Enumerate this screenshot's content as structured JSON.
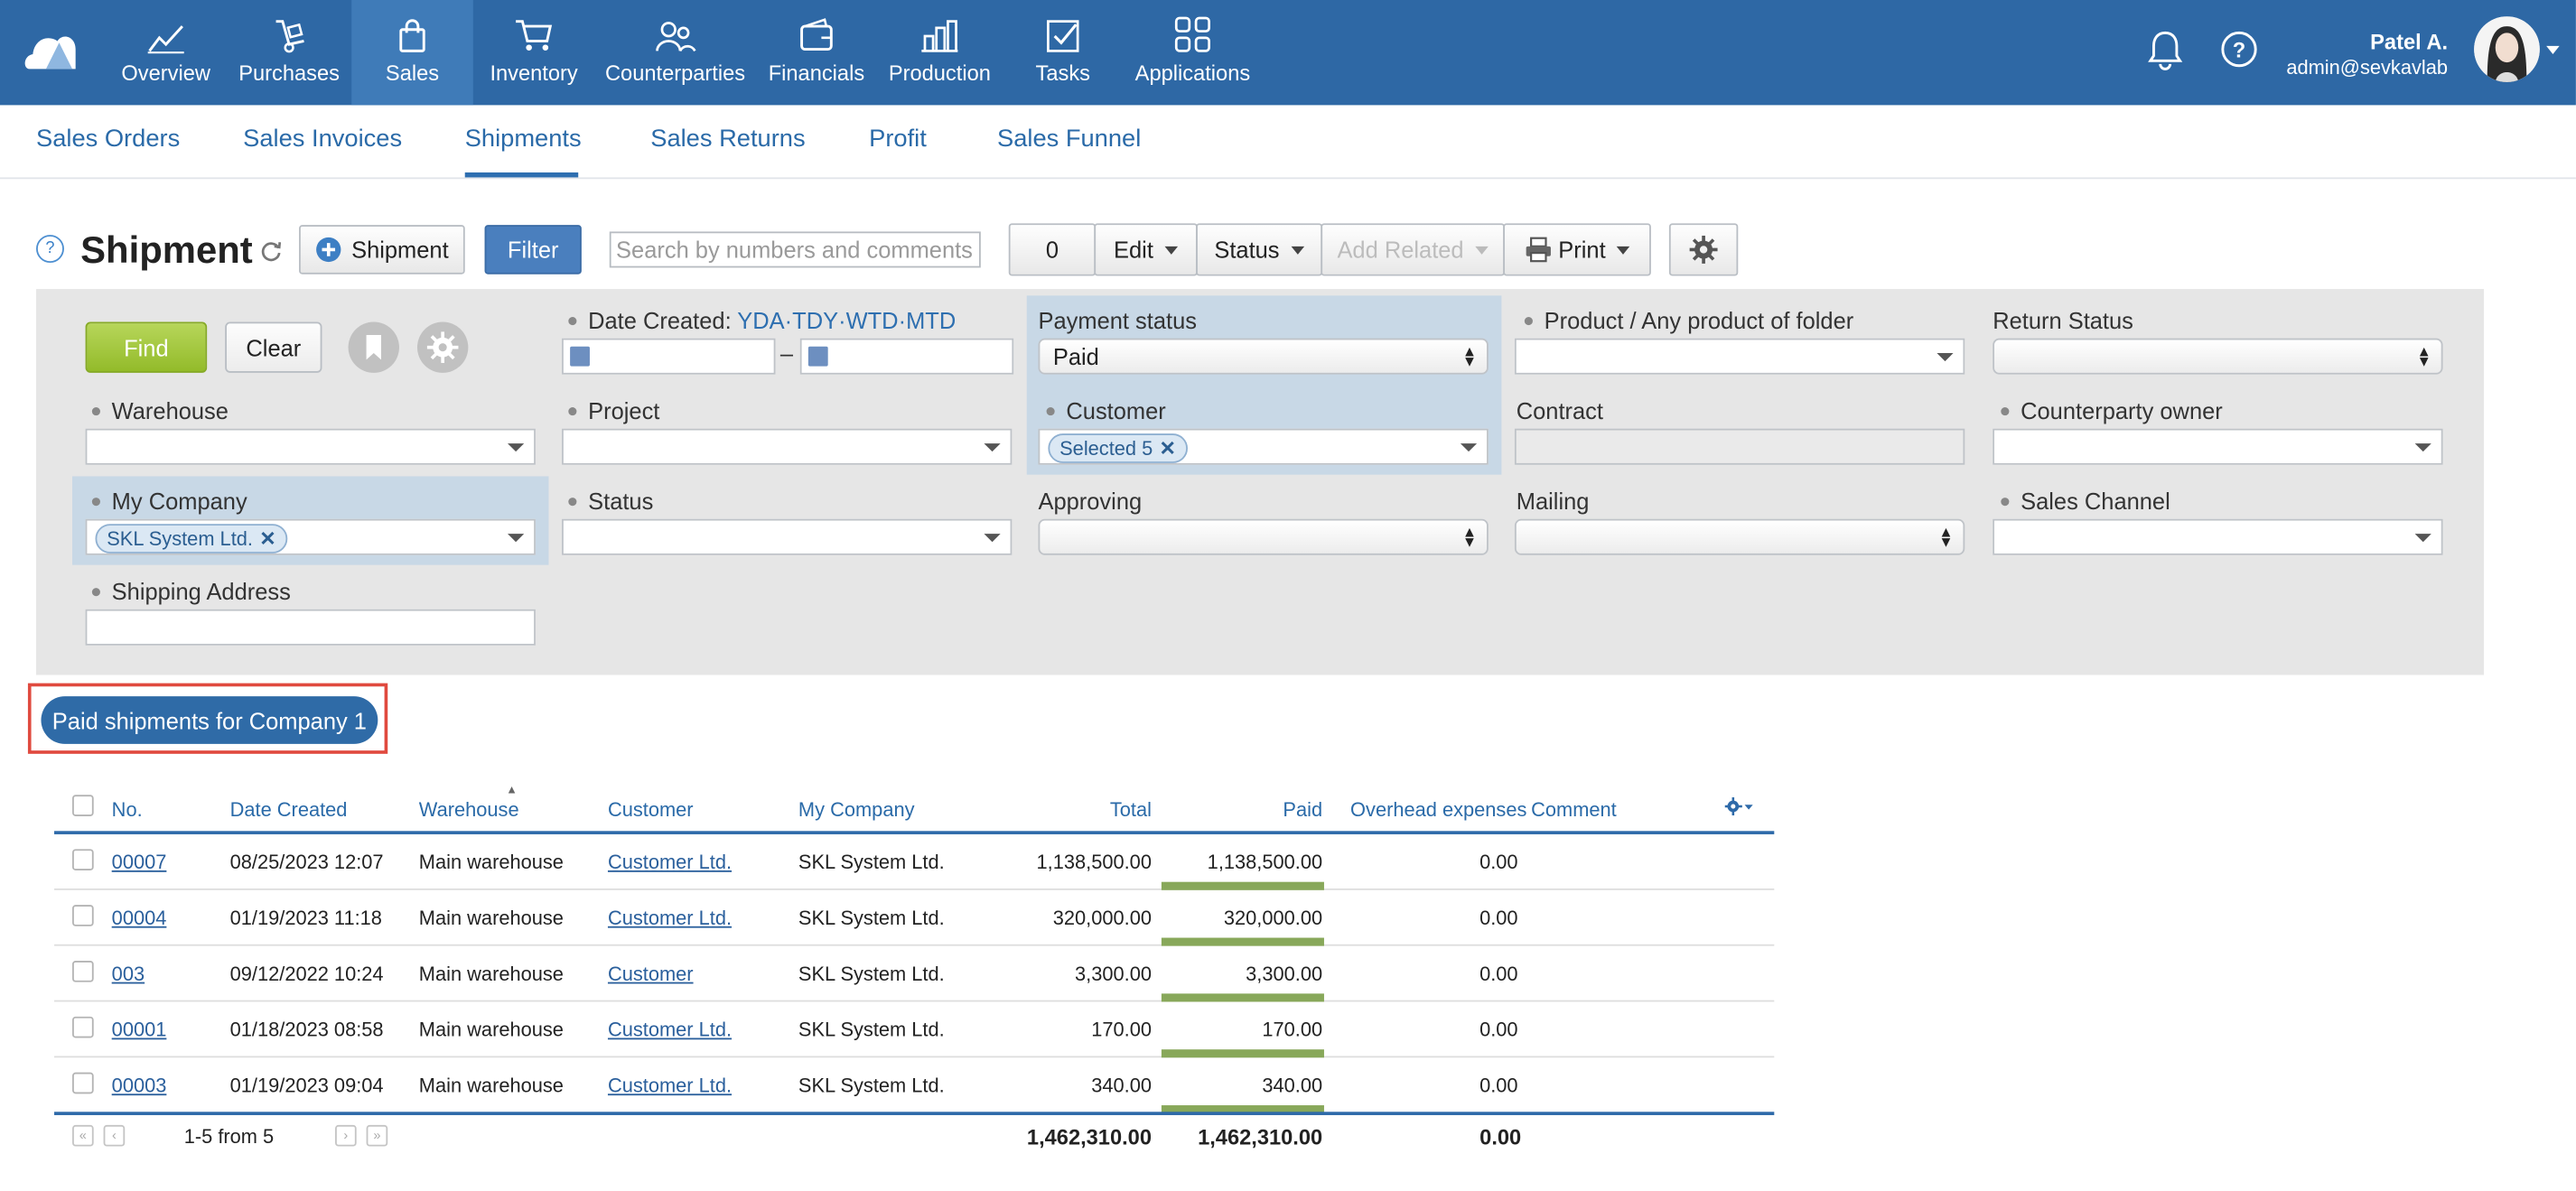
{
  "topnav": {
    "items": [
      {
        "label": "Overview",
        "icon": "chart-line-icon"
      },
      {
        "label": "Purchases",
        "icon": "hand-truck-icon"
      },
      {
        "label": "Sales",
        "icon": "shopping-bag-icon",
        "active": true
      },
      {
        "label": "Inventory",
        "icon": "cart-icon"
      },
      {
        "label": "Counterparties",
        "icon": "people-icon"
      },
      {
        "label": "Financials",
        "icon": "wallet-icon"
      },
      {
        "label": "Production",
        "icon": "factory-icon"
      },
      {
        "label": "Tasks",
        "icon": "checkbox-icon"
      },
      {
        "label": "Applications",
        "icon": "apps-grid-icon"
      }
    ],
    "user_name": "Patel A.",
    "user_email": "admin@sevkavlab"
  },
  "subnav": {
    "items": [
      "Sales Orders",
      "Sales Invoices",
      "Shipments",
      "Sales Returns",
      "Profit",
      "Sales Funnel"
    ],
    "active": "Shipments"
  },
  "toolbar": {
    "help": "?",
    "title": "Shipment",
    "add_label": "Shipment",
    "filter_label": "Filter",
    "search_placeholder": "Search by numbers and comments",
    "selected_count": "0",
    "edit_label": "Edit",
    "status_label": "Status",
    "add_related_label": "Add Related",
    "print_label": "Print"
  },
  "filters": {
    "find_label": "Find",
    "clear_label": "Clear",
    "date_created_label": "Date Created:",
    "date_links": [
      "YDA",
      "TDY",
      "WTD",
      "MTD"
    ],
    "date_separator": "–",
    "payment_status_label": "Payment status",
    "payment_status_value": "Paid",
    "product_label": "Product / Any product of folder",
    "return_status_label": "Return Status",
    "warehouse_label": "Warehouse",
    "project_label": "Project",
    "customer_label": "Customer",
    "customer_chip": "Selected 5",
    "contract_label": "Contract",
    "counterparty_owner_label": "Counterparty owner",
    "my_company_label": "My Company",
    "my_company_chip": "SKL System Ltd.",
    "status_label": "Status",
    "approving_label": "Approving",
    "mailing_label": "Mailing",
    "sales_channel_label": "Sales Channel",
    "shipping_address_label": "Shipping Address"
  },
  "saved_filter": "Paid shipments for Company 1",
  "table": {
    "headers": {
      "no": "No.",
      "date_created": "Date Created",
      "warehouse": "Warehouse",
      "customer": "Customer",
      "my_company": "My Company",
      "total": "Total",
      "paid": "Paid",
      "overhead": "Overhead expenses",
      "comment": "Comment"
    },
    "rows": [
      {
        "no": "00007",
        "date": "08/25/2023 12:07",
        "warehouse": "Main warehouse",
        "customer": "Customer Ltd.",
        "company": "SKL System Ltd.",
        "total": "1,138,500.00",
        "paid": "1,138,500.00",
        "overhead": "0.00",
        "comment": ""
      },
      {
        "no": "00004",
        "date": "01/19/2023 11:18",
        "warehouse": "Main warehouse",
        "customer": "Customer Ltd.",
        "company": "SKL System Ltd.",
        "total": "320,000.00",
        "paid": "320,000.00",
        "overhead": "0.00",
        "comment": ""
      },
      {
        "no": "003",
        "date": "09/12/2022 10:24",
        "warehouse": "Main warehouse",
        "customer": "Customer",
        "company": "SKL System Ltd.",
        "total": "3,300.00",
        "paid": "3,300.00",
        "overhead": "0.00",
        "comment": ""
      },
      {
        "no": "00001",
        "date": "01/18/2023 08:58",
        "warehouse": "Main warehouse",
        "customer": "Customer Ltd.",
        "company": "SKL System Ltd.",
        "total": "170.00",
        "paid": "170.00",
        "overhead": "0.00",
        "comment": ""
      },
      {
        "no": "00003",
        "date": "01/19/2023 09:04",
        "warehouse": "Main warehouse",
        "customer": "Customer Ltd.",
        "company": "SKL System Ltd.",
        "total": "340.00",
        "paid": "340.00",
        "overhead": "0.00",
        "comment": ""
      }
    ],
    "paid_fraction": [
      1,
      1,
      1,
      1,
      1
    ],
    "footer": {
      "range": "1-5 from 5",
      "total": "1,462,310.00",
      "paid": "1,462,310.00",
      "overhead": "0.00"
    }
  },
  "colors": {
    "topbar": "#2e68a5",
    "accent": "#2e6fb0",
    "find": "#9cc236",
    "highlight": "#c8d8e6",
    "paid_bar": "#88a85a"
  }
}
